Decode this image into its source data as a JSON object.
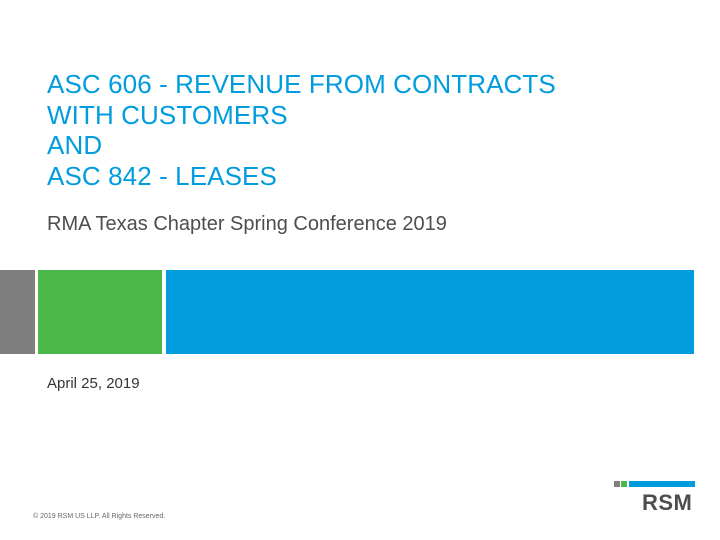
{
  "slide": {
    "title_lines": [
      "ASC 606 - REVENUE FROM CONTRACTS",
      "WITH CUSTOMERS",
      "AND",
      "ASC 842 - LEASES"
    ],
    "subtitle": "RMA Texas Chapter Spring Conference 2019",
    "date": "April 25, 2019",
    "copyright": "© 2019 RSM US LLP. All Rights Reserved.",
    "logo_text": "RSM"
  },
  "colors": {
    "brand_blue": "#009cde",
    "brand_green": "#4cb848",
    "brand_gray": "#7f7f7f",
    "text_dark": "#4d4d4d"
  }
}
